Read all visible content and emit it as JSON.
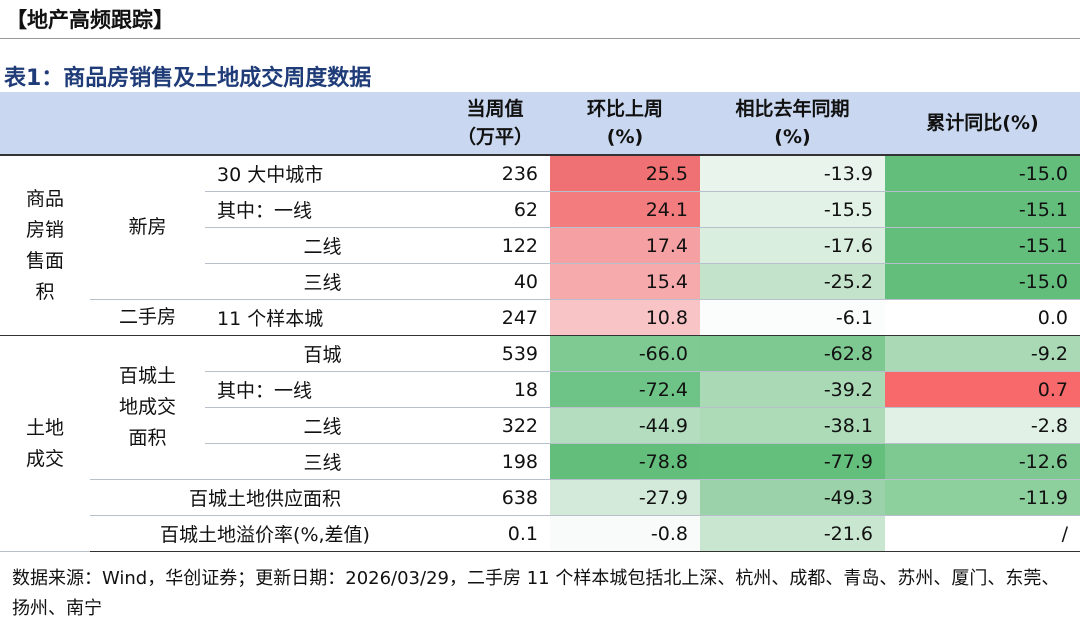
{
  "header": {
    "title": "【地产高频跟踪】"
  },
  "table": {
    "title": "表1：商品房销售及土地成交周度数据",
    "columns": [
      [
        "当周值",
        "（万平）"
      ],
      [
        "环比上周",
        "(%)"
      ],
      [
        "相比去年同期",
        "(%)"
      ],
      [
        "累计同比(%)"
      ]
    ],
    "groups": [
      [
        "商品",
        "房销",
        "售面",
        "积"
      ],
      [
        "土地",
        "成交"
      ]
    ],
    "subgroups": [
      [
        "新房"
      ],
      [
        "二手房"
      ],
      [
        "百城土",
        "地成交",
        "面积"
      ]
    ],
    "rows": [
      {
        "label": "30 大中城市",
        "values": [
          "236",
          "25.5",
          "-13.9",
          "-15.0"
        ],
        "colors": [
          "#ffffff",
          "#f07173",
          "#e9f5ec",
          "#63be7b"
        ]
      },
      {
        "label": "其中：一线",
        "values": [
          "62",
          "24.1",
          "-15.5",
          "-15.1"
        ],
        "colors": [
          "#ffffff",
          "#f27c7e",
          "#e2f2e6",
          "#63be7b"
        ]
      },
      {
        "label": "二线",
        "values": [
          "122",
          "17.4",
          "-17.6",
          "-15.1"
        ],
        "colors": [
          "#ffffff",
          "#f5a0a2",
          "#daeedf",
          "#63be7b"
        ]
      },
      {
        "label": "三线",
        "values": [
          "40",
          "15.4",
          "-25.2",
          "-15.0"
        ],
        "colors": [
          "#ffffff",
          "#f6aaac",
          "#c3e3cb",
          "#63be7b"
        ]
      },
      {
        "label": "11 个样本城",
        "values": [
          "247",
          "10.8",
          "-6.1",
          "0.0"
        ],
        "colors": [
          "#ffffff",
          "#f9c4c6",
          "#fbfdfc",
          "#ffffff"
        ]
      },
      {
        "label": "百城",
        "values": [
          "539",
          "-66.0",
          "-62.8",
          "-9.2"
        ],
        "colors": [
          "#ffffff",
          "#7fca93",
          "#7dc991",
          "#a9d9b5"
        ]
      },
      {
        "label": "其中：一线",
        "values": [
          "18",
          "-72.4",
          "-39.2",
          "0.7"
        ],
        "colors": [
          "#ffffff",
          "#6ec486",
          "#aad9b6",
          "#f8696b"
        ]
      },
      {
        "label": "二线",
        "values": [
          "322",
          "-44.9",
          "-38.1",
          "-2.8"
        ],
        "colors": [
          "#ffffff",
          "#b3ddbe",
          "#addbb8",
          "#e1f1e5"
        ]
      },
      {
        "label": "三线",
        "values": [
          "198",
          "-78.8",
          "-77.9",
          "-12.6"
        ],
        "colors": [
          "#ffffff",
          "#63be7b",
          "#64bf7c",
          "#7ec992"
        ]
      },
      {
        "label": "百城土地供应面积",
        "values": [
          "638",
          "-27.9",
          "-49.3",
          "-11.9"
        ],
        "colors": [
          "#ffffff",
          "#d3eadb",
          "#9bd2a9",
          "#8ecf9e"
        ]
      },
      {
        "label": "百城土地溢价率(%,差值)",
        "values": [
          "0.1",
          "-0.8",
          "-21.6",
          "/"
        ],
        "colors": [
          "#ffffff",
          "#f8fbf9",
          "#c9e6d0",
          "#ffffff"
        ]
      }
    ]
  },
  "footer": {
    "note": "数据来源：Wind，华创证券；更新日期：2026/03/29，二手房 11 个样本城包括北上深、杭州、成都、青岛、苏州、厦门、东莞、扬州、南宁"
  }
}
